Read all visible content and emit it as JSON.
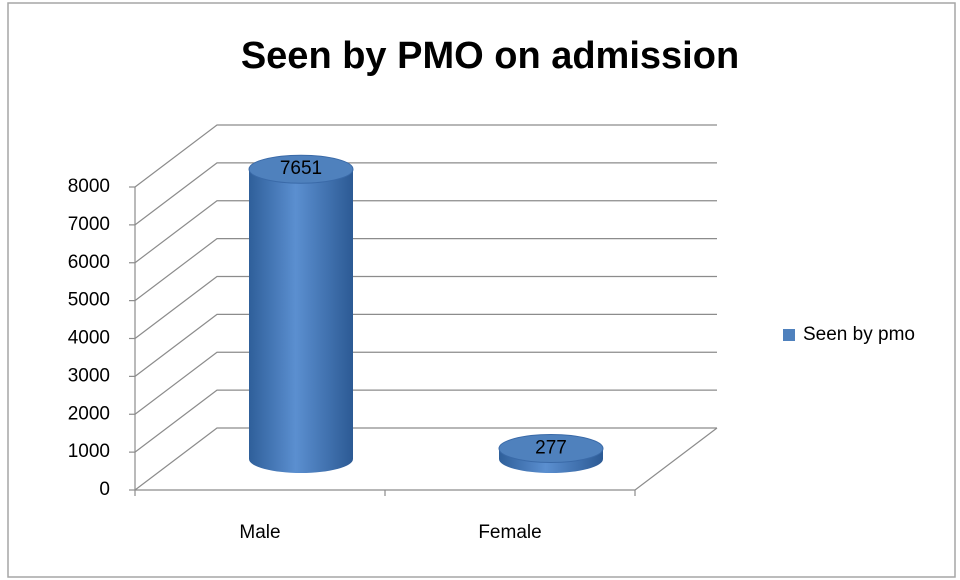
{
  "chart_data": {
    "type": "bar3d",
    "title": "Seen by PMO on admission",
    "categories": [
      "Male",
      "Female"
    ],
    "series": [
      {
        "name": "Seen by pmo",
        "color": "#4f81bd",
        "values": [
          7651,
          277
        ]
      }
    ],
    "ylim": [
      0,
      8000
    ],
    "yticks": [
      0,
      1000,
      2000,
      3000,
      4000,
      5000,
      6000,
      7000,
      8000
    ],
    "grid": true,
    "legend": "right"
  }
}
